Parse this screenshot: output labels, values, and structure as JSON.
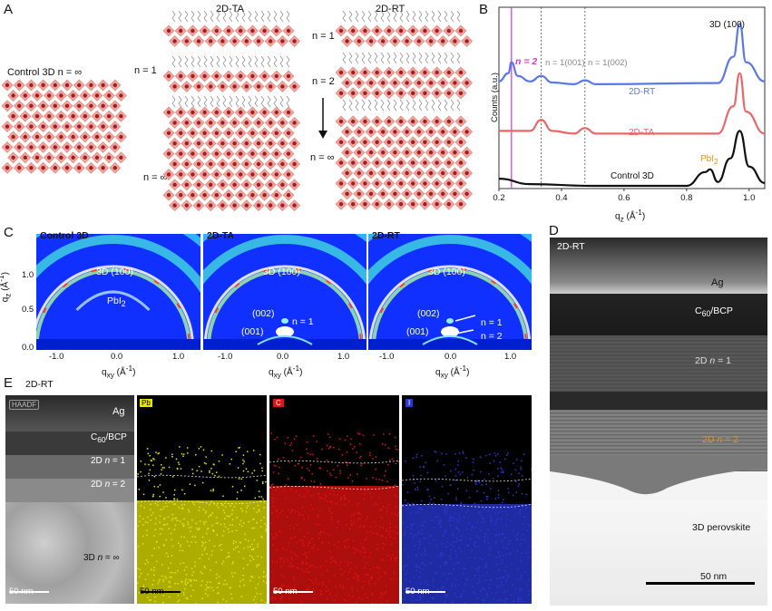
{
  "panel_labels": {
    "a": "A",
    "b": "B",
    "c": "C",
    "d": "D",
    "e": "E"
  },
  "panelA": {
    "control_label": "Control 3D n = ∞",
    "ta_title": "2D-TA",
    "rt_title": "2D-RT",
    "ta_n1": "n = 1",
    "ta_ninf": "n = ∞",
    "rt_n1": "n = 1",
    "rt_n2": "n = 2",
    "rt_ninf": "n = ∞"
  },
  "panelB": {
    "ylabel": "Counts (a.u.)",
    "xlabel": "qz (Å⁻¹)",
    "ann_n2": "n = 2",
    "ann_001": "n = 1(001)",
    "ann_002": "n = 1(002)",
    "ann_3d100": "3D (100)",
    "ann_pbi2": "PbI2",
    "colors": {
      "rt": "#5a78e8",
      "ta": "#e86868",
      "control": "#111111",
      "n2": "#d13ad1",
      "pbi2": "#e69500"
    }
  },
  "chart_data": {
    "type": "line",
    "xlabel": "qz (Å⁻¹)",
    "ylabel": "Counts (a.u.)",
    "xlim": [
      0.2,
      1.05
    ],
    "xticks": [
      "0.2",
      "0.4",
      "0.6",
      "0.8",
      "1.0"
    ],
    "vlines": [
      0.24,
      0.335,
      0.475
    ],
    "series": [
      {
        "name": "2D-RT",
        "x": [
          0.2,
          0.23,
          0.24,
          0.26,
          0.3,
          0.335,
          0.37,
          0.44,
          0.475,
          0.51,
          0.9,
          0.95,
          0.97,
          0.99,
          1.05
        ],
        "y": [
          1.95,
          2.1,
          2.3,
          2.05,
          1.95,
          2.05,
          1.93,
          1.9,
          1.97,
          1.9,
          1.92,
          2.4,
          3.0,
          2.3,
          1.95
        ]
      },
      {
        "name": "2D-TA",
        "x": [
          0.2,
          0.3,
          0.335,
          0.37,
          0.44,
          0.475,
          0.51,
          0.9,
          0.95,
          0.97,
          0.99,
          1.05
        ],
        "y": [
          1.05,
          1.05,
          1.25,
          1.05,
          1.0,
          1.1,
          1.0,
          1.0,
          1.5,
          2.1,
          1.4,
          1.0
        ]
      },
      {
        "name": "Control 3D",
        "x": [
          0.2,
          0.3,
          0.5,
          0.8,
          0.86,
          0.875,
          0.9,
          0.94,
          0.97,
          1.0,
          1.05
        ],
        "y": [
          0.18,
          0.08,
          0.05,
          0.05,
          0.3,
          0.35,
          0.12,
          0.55,
          1.05,
          0.4,
          0.1
        ]
      }
    ]
  },
  "panelC": {
    "titles": [
      "Control 3D",
      "2D-TA",
      "2D-RT"
    ],
    "ylabel": "qz (Å⁻¹)",
    "xlabel": "qxy (Å⁻¹)",
    "yticks": [
      "1.0",
      "0.5",
      "0.0"
    ],
    "xticks": [
      "-1.0",
      "0.0",
      "1.0"
    ],
    "ring_3d": "3D (100)",
    "pbi2": "PbI2",
    "l002": "(002)",
    "l001": "(001)",
    "n1": "n = 1",
    "n2": "n = 2"
  },
  "panelD": {
    "title": "2D-RT",
    "ag": "Ag",
    "c60": "C60/BCP",
    "n1": "2D n = 1",
    "n2": "2D n = 2",
    "perov": "3D perovskite",
    "scale": "50 nm"
  },
  "panelE": {
    "title": "2D-RT",
    "haadf": "HAADF",
    "ag": "Ag",
    "c60": "C60/BCP",
    "n1": "2D n = 1",
    "n2": "2D n = 2",
    "ninf": "3D n = ∞",
    "scale": "50 nm",
    "maps": [
      "Pb",
      "C",
      "I"
    ]
  }
}
